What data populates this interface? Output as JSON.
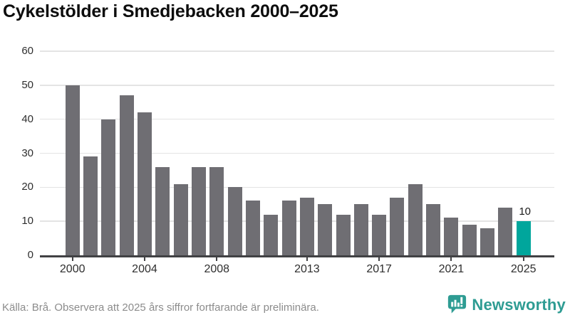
{
  "title": "Cykelstölder i Smedjebacken 2000–2025",
  "chart_data": {
    "type": "bar",
    "title": "Cykelstölder i Smedjebacken 2000–2025",
    "categories": [
      2000,
      2001,
      2002,
      2003,
      2004,
      2005,
      2006,
      2007,
      2008,
      2009,
      2010,
      2011,
      2012,
      2013,
      2014,
      2015,
      2016,
      2017,
      2018,
      2019,
      2020,
      2021,
      2022,
      2023,
      2024,
      2025
    ],
    "values": [
      50,
      29,
      40,
      47,
      42,
      26,
      21,
      26,
      26,
      20,
      16,
      12,
      16,
      17,
      15,
      12,
      15,
      12,
      17,
      21,
      15,
      11,
      9,
      8,
      14,
      10
    ],
    "xlabel": "",
    "ylabel": "",
    "ylim": [
      0,
      60
    ],
    "yticks": [
      0,
      10,
      20,
      30,
      40,
      50,
      60
    ],
    "xticks": [
      2000,
      2004,
      2008,
      2013,
      2017,
      2021,
      2025
    ],
    "grid": true,
    "legend": "none",
    "highlight": {
      "year": 2025,
      "value": 10,
      "label": "10"
    },
    "colors": {
      "bar": "#6f6e73",
      "highlight": "#00a69c",
      "gridline": "#e4e4e4",
      "axis": "#414144",
      "tick_label": "#2e2e2e",
      "value_label": "#1a1a1a"
    }
  },
  "footer": {
    "source_note": "Källa: Brå. Observera att 2025 års siffror fortfarande är preliminära."
  },
  "branding": {
    "logo_text": "Newsworthy",
    "logo_color": "#2e9c93",
    "logo_icon": "bar-chart-speech-bubble"
  }
}
